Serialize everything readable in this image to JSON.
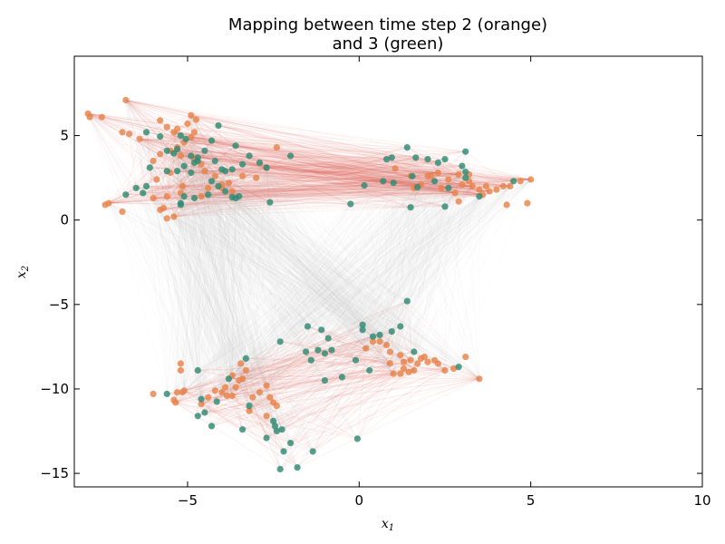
{
  "chart_data": {
    "type": "scatter",
    "title_line1": "Mapping between time step 2 (orange)",
    "title_line2": "and 3 (green)",
    "xlabel": "x",
    "xlabel_sub": "1",
    "ylabel": "x",
    "ylabel_sub": "2",
    "xlim": [
      -8.3,
      10
    ],
    "ylim": [
      -15.8,
      9.7
    ],
    "xticks": [
      -5,
      0,
      5,
      10
    ],
    "yticks": [
      5,
      0,
      -5,
      -10,
      -15
    ],
    "xtick_labels": [
      "−5",
      "0",
      "5",
      "10"
    ],
    "ytick_labels": [
      "5",
      "0",
      "−5",
      "−10",
      "−15"
    ],
    "grid": false,
    "colors": {
      "orange": "#e8834a",
      "green": "#2e8b74",
      "line_red": "#e05a4a",
      "line_gray": "#c9c9c9"
    },
    "series": [
      {
        "label": "time step 2",
        "color": "#e8834a",
        "points": [
          [
            -7.9,
            6.3
          ],
          [
            -7.85,
            6.1
          ],
          [
            -7.5,
            6.1
          ],
          [
            -6.8,
            7.1
          ],
          [
            -6.9,
            5.2
          ],
          [
            -6.7,
            5.1
          ],
          [
            -6.4,
            4.8
          ],
          [
            -5.8,
            5.9
          ],
          [
            -5.6,
            5.5
          ],
          [
            -5.4,
            5.2
          ],
          [
            -5.3,
            5.4
          ],
          [
            -5.0,
            5.7
          ],
          [
            -4.9,
            6.2
          ],
          [
            -4.75,
            5.95
          ],
          [
            -4.8,
            5.2
          ],
          [
            -4.9,
            4.9
          ],
          [
            -5.1,
            4.6
          ],
          [
            -5.3,
            4.3
          ],
          [
            -5.5,
            4.1
          ],
          [
            -5.8,
            3.9
          ],
          [
            -6.0,
            3.5
          ],
          [
            -5.2,
            3.8
          ],
          [
            -4.8,
            3.6
          ],
          [
            -4.6,
            3.3
          ],
          [
            -4.5,
            2.9
          ],
          [
            -4.2,
            2.6
          ],
          [
            -4.0,
            2.1
          ],
          [
            -3.7,
            1.7
          ],
          [
            -3.4,
            2.6
          ],
          [
            -3.0,
            2.5
          ],
          [
            -2.7,
            3.1
          ],
          [
            -2.4,
            4.3
          ],
          [
            -4.4,
            1.9
          ],
          [
            -4.6,
            1.4
          ],
          [
            -5.2,
            1.6
          ],
          [
            -5.6,
            1.4
          ],
          [
            -6.0,
            1.3
          ],
          [
            -5.9,
            2.4
          ],
          [
            -5.5,
            2.8
          ],
          [
            -7.3,
            1.0
          ],
          [
            -7.4,
            0.9
          ],
          [
            -6.9,
            0.5
          ],
          [
            -5.8,
            0.6
          ],
          [
            -5.7,
            0.7
          ],
          [
            -5.6,
            0.1
          ],
          [
            -5.4,
            0.2
          ],
          [
            -4.0,
            1.9
          ],
          [
            -3.8,
            2.2
          ],
          [
            -5.15,
            2.0
          ],
          [
            1.05,
            3.05
          ],
          [
            1.5,
            2.6
          ],
          [
            1.8,
            2.1
          ],
          [
            1.6,
            1.9
          ],
          [
            2.0,
            2.6
          ],
          [
            2.3,
            2.8
          ],
          [
            2.1,
            2.6
          ],
          [
            2.6,
            2.4
          ],
          [
            2.9,
            2.7
          ],
          [
            3.0,
            2.1
          ],
          [
            3.2,
            2.7
          ],
          [
            3.3,
            2.0
          ],
          [
            3.5,
            1.8
          ],
          [
            3.7,
            2.0
          ],
          [
            3.8,
            1.7
          ],
          [
            4.0,
            1.8
          ],
          [
            4.2,
            2.0
          ],
          [
            4.4,
            2.0
          ],
          [
            4.3,
            0.9
          ],
          [
            4.7,
            2.3
          ],
          [
            5.0,
            2.4
          ],
          [
            4.9,
            1.0
          ],
          [
            2.9,
            1.1
          ],
          [
            2.8,
            1.6
          ],
          [
            2.4,
            1.9
          ],
          [
            3.2,
            2.3
          ],
          [
            3.6,
            1.5
          ],
          [
            -5.2,
            -8.5
          ],
          [
            -5.2,
            -8.9
          ],
          [
            -5.1,
            -10.1
          ],
          [
            -5.15,
            -10.2
          ],
          [
            -5.3,
            -10.2
          ],
          [
            -5.35,
            -10.8
          ],
          [
            -5.4,
            -10.65
          ],
          [
            -6.0,
            -10.3
          ],
          [
            -4.6,
            -10.9
          ],
          [
            -4.4,
            -10.5
          ],
          [
            -4.2,
            -10.1
          ],
          [
            -4.0,
            -10.2
          ],
          [
            -3.9,
            -9.9
          ],
          [
            -3.85,
            -10.4
          ],
          [
            -3.7,
            -10.4
          ],
          [
            -3.6,
            -9.9
          ],
          [
            -3.5,
            -9.5
          ],
          [
            -3.4,
            -9.4
          ],
          [
            -3.3,
            -8.9
          ],
          [
            -3.45,
            -8.5
          ],
          [
            -3.7,
            -9.2
          ],
          [
            -3.1,
            -10.5
          ],
          [
            -2.9,
            -10.2
          ],
          [
            -2.7,
            -9.8
          ],
          [
            -2.6,
            -10.5
          ],
          [
            -2.4,
            -11.0
          ],
          [
            -3.2,
            -11.3
          ],
          [
            -2.7,
            -11.6
          ],
          [
            -2.5,
            -10.8
          ],
          [
            0.2,
            -7.6
          ],
          [
            0.4,
            -7.2
          ],
          [
            0.6,
            -7.2
          ],
          [
            0.8,
            -7.4
          ],
          [
            0.9,
            -7.8
          ],
          [
            1.2,
            -8.0
          ],
          [
            0.9,
            -8.5
          ],
          [
            1.3,
            -8.4
          ],
          [
            1.45,
            -9.0
          ],
          [
            1.6,
            -8.9
          ],
          [
            1.8,
            -8.2
          ],
          [
            1.9,
            -8.1
          ],
          [
            1.5,
            -8.3
          ],
          [
            1.3,
            -8.8
          ],
          [
            1.2,
            -9.1
          ],
          [
            1.0,
            -9.1
          ],
          [
            2.2,
            -8.3
          ],
          [
            2.3,
            -8.5
          ],
          [
            2.5,
            -8.9
          ],
          [
            2.75,
            -8.8
          ],
          [
            3.1,
            -8.1
          ],
          [
            3.5,
            -9.4
          ],
          [
            1.7,
            -8.5
          ],
          [
            2.0,
            -8.4
          ]
        ]
      },
      {
        "label": "time step 3",
        "color": "#2e8b74",
        "points": [
          [
            -6.2,
            5.2
          ],
          [
            -5.8,
            4.95
          ],
          [
            -5.6,
            4.1
          ],
          [
            -5.4,
            3.95
          ],
          [
            -5.3,
            4.2
          ],
          [
            -5.2,
            5.0
          ],
          [
            -5.05,
            4.8
          ],
          [
            -4.9,
            3.8
          ],
          [
            -4.7,
            3.5
          ],
          [
            -4.5,
            4.1
          ],
          [
            -4.3,
            4.7
          ],
          [
            -4.1,
            5.6
          ],
          [
            -4.2,
            3.5
          ],
          [
            -4.0,
            3.0
          ],
          [
            -3.9,
            2.9
          ],
          [
            -3.7,
            3.0
          ],
          [
            -3.6,
            4.4
          ],
          [
            -3.4,
            3.3
          ],
          [
            -3.2,
            3.8
          ],
          [
            -2.9,
            3.4
          ],
          [
            -2.7,
            3.1
          ],
          [
            -2.0,
            3.8
          ],
          [
            -6.1,
            3.1
          ],
          [
            -5.6,
            2.9
          ],
          [
            -5.3,
            2.9
          ],
          [
            -5.1,
            3.2
          ],
          [
            -4.8,
            3.4
          ],
          [
            -4.7,
            3.7
          ],
          [
            -4.9,
            2.8
          ],
          [
            -4.3,
            2.3
          ],
          [
            -4.1,
            2.0
          ],
          [
            -3.9,
            1.7
          ],
          [
            -3.7,
            1.35
          ],
          [
            -3.5,
            1.4
          ],
          [
            -3.6,
            1.3
          ],
          [
            -4.4,
            1.5
          ],
          [
            -4.8,
            1.3
          ],
          [
            -5.1,
            1.4
          ],
          [
            -5.2,
            1.0
          ],
          [
            -5.2,
            0.9
          ],
          [
            -6.3,
            1.6
          ],
          [
            -6.5,
            1.9
          ],
          [
            -6.8,
            1.5
          ],
          [
            -6.2,
            2.0
          ],
          [
            -2.6,
            1.05
          ],
          [
            -0.25,
            0.95
          ],
          [
            0.15,
            2.05
          ],
          [
            0.7,
            2.3
          ],
          [
            0.8,
            3.6
          ],
          [
            0.95,
            3.7
          ],
          [
            1.0,
            2.2
          ],
          [
            1.4,
            4.3
          ],
          [
            1.55,
            2.6
          ],
          [
            1.65,
            3.7
          ],
          [
            2.0,
            3.6
          ],
          [
            2.2,
            2.3
          ],
          [
            2.3,
            3.4
          ],
          [
            2.5,
            3.6
          ],
          [
            2.5,
            0.8
          ],
          [
            2.6,
            1.9
          ],
          [
            3.0,
            3.2
          ],
          [
            3.1,
            2.85
          ],
          [
            3.1,
            4.05
          ],
          [
            3.1,
            2.5
          ],
          [
            1.7,
            1.95
          ],
          [
            1.5,
            0.75
          ],
          [
            3.5,
            1.4
          ],
          [
            4.5,
            2.3
          ],
          [
            1.4,
            -4.8
          ],
          [
            -1.5,
            -6.3
          ],
          [
            -1.1,
            -6.5
          ],
          [
            -0.9,
            -7.0
          ],
          [
            -1.2,
            -7.7
          ],
          [
            -1.0,
            -7.9
          ],
          [
            -0.8,
            -7.7
          ],
          [
            -1.55,
            -7.8
          ],
          [
            -1.4,
            -8.3
          ],
          [
            -1.0,
            -9.5
          ],
          [
            -0.5,
            -9.3
          ],
          [
            -0.1,
            -8.3
          ],
          [
            0.1,
            -6.5
          ],
          [
            0.1,
            -6.2
          ],
          [
            0.4,
            -6.9
          ],
          [
            0.6,
            -6.8
          ],
          [
            0.95,
            -6.6
          ],
          [
            1.2,
            -6.3
          ],
          [
            1.6,
            -7.8
          ],
          [
            2.9,
            -8.7
          ],
          [
            0.3,
            -8.9
          ],
          [
            -2.3,
            -7.2
          ],
          [
            -5.6,
            -10.3
          ],
          [
            -4.7,
            -8.9
          ],
          [
            -4.6,
            -10.6
          ],
          [
            -4.15,
            -10.75
          ],
          [
            -3.8,
            -9.4
          ],
          [
            -3.3,
            -8.2
          ],
          [
            -3.2,
            -11.0
          ],
          [
            -4.3,
            -12.2
          ],
          [
            -4.5,
            -11.4
          ],
          [
            -4.7,
            -11.6
          ],
          [
            -3.4,
            -12.4
          ],
          [
            -2.7,
            -12.9
          ],
          [
            -2.5,
            -11.9
          ],
          [
            -2.45,
            -12.2
          ],
          [
            -2.4,
            -12.5
          ],
          [
            -2.25,
            -12.4
          ],
          [
            -2.0,
            -13.2
          ],
          [
            -1.35,
            -13.7
          ],
          [
            -2.2,
            -13.7
          ],
          [
            -2.3,
            -14.75
          ],
          [
            -1.8,
            -14.65
          ],
          [
            -0.05,
            -12.95
          ]
        ]
      }
    ]
  }
}
